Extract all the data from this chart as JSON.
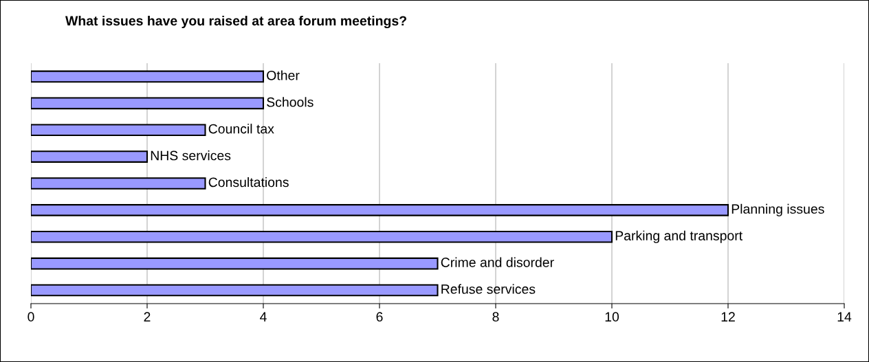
{
  "chart_data": {
    "type": "bar",
    "orientation": "horizontal",
    "title": "What issues have you raised at area forum meetings?",
    "categories": [
      "Other",
      "Schools",
      "Council tax",
      "NHS services",
      "Consultations",
      "Planning issues",
      "Parking and transport",
      "Crime and disorder",
      "Refuse services"
    ],
    "values": [
      4,
      4,
      3,
      2,
      3,
      12,
      10,
      7,
      7
    ],
    "color": "#9999ff",
    "xlim": [
      0,
      14
    ],
    "xticks": [
      0,
      2,
      4,
      6,
      8,
      10,
      12,
      14
    ],
    "grid": "x",
    "tick_labels": "x"
  }
}
